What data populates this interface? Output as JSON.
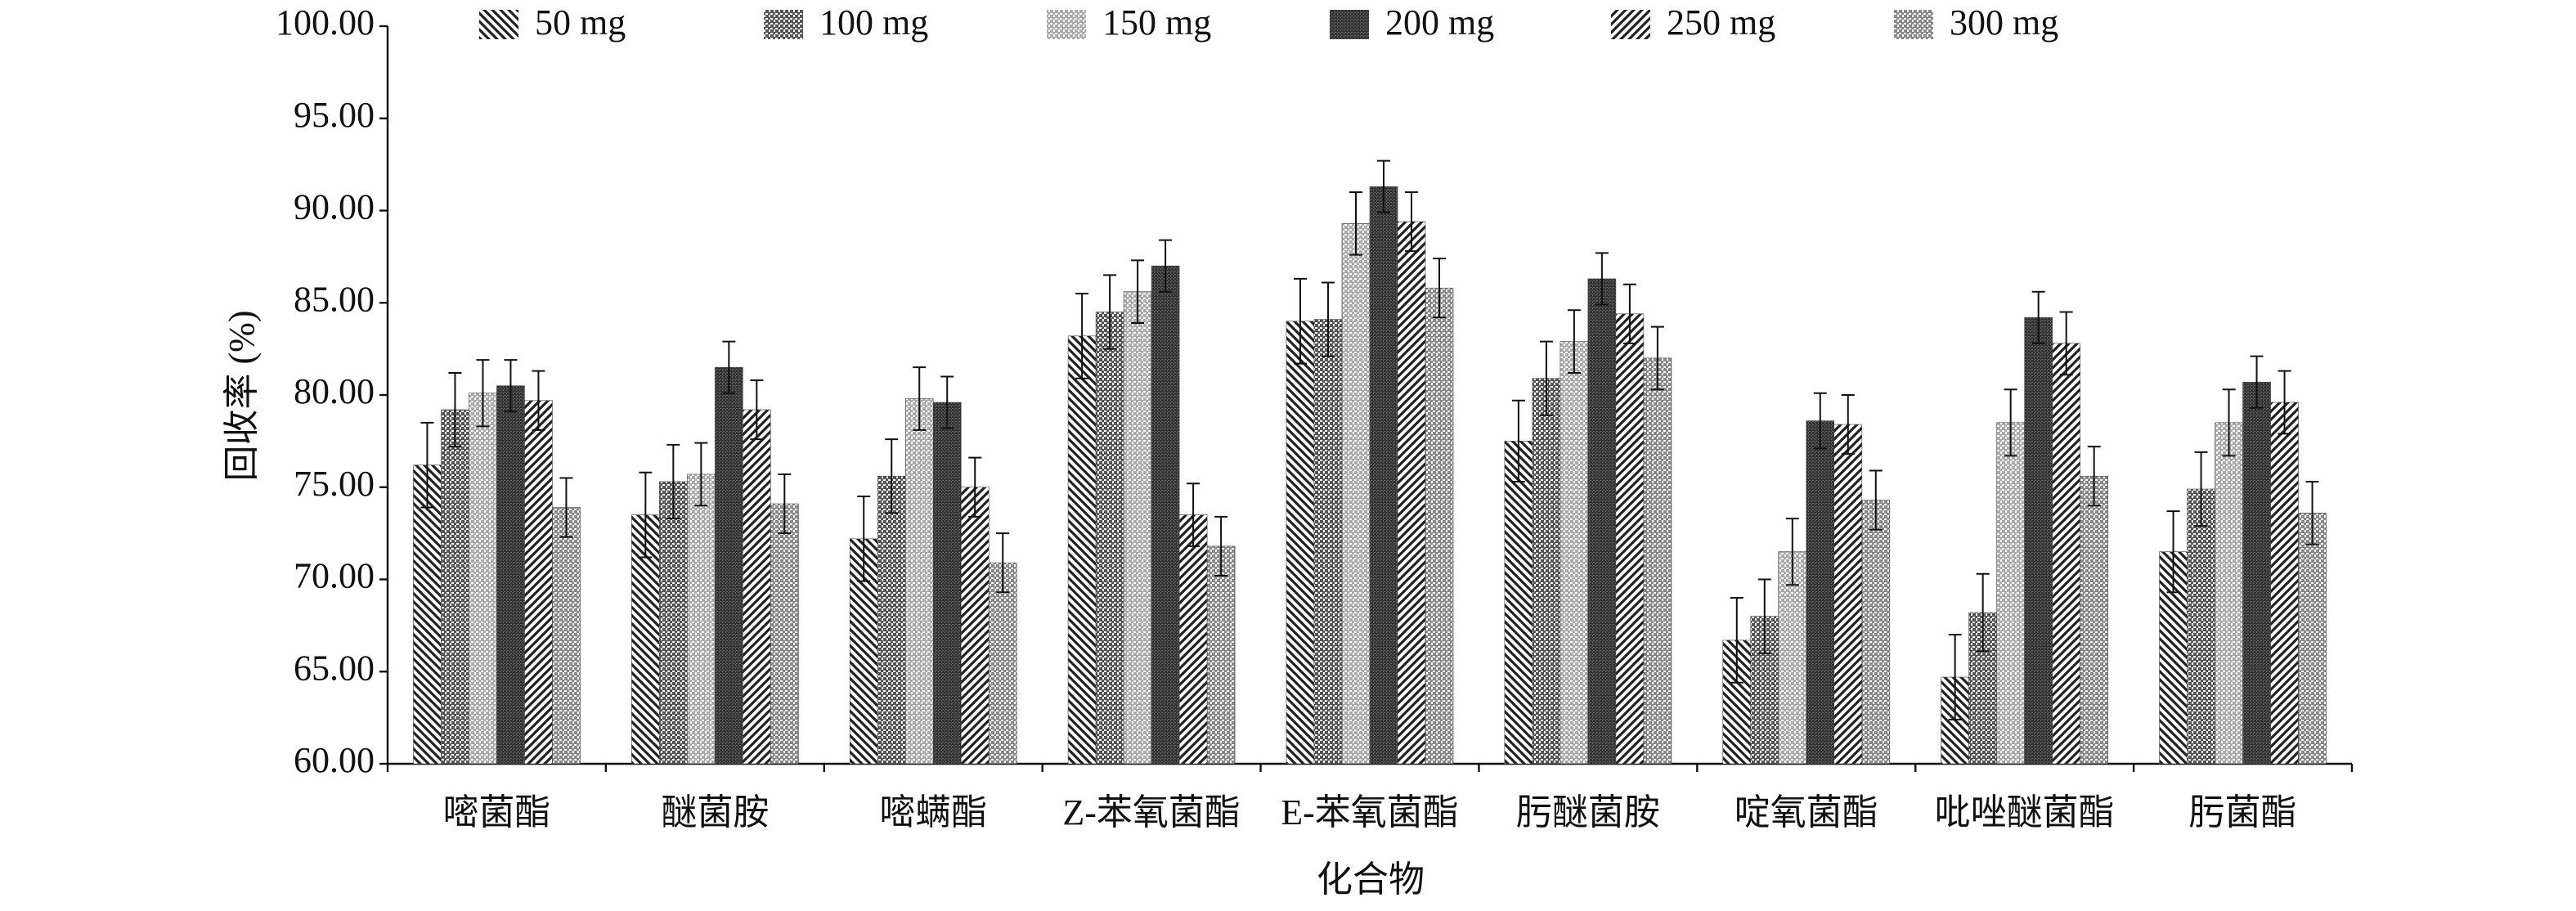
{
  "chart_data": {
    "type": "bar",
    "y_label": "回收率 (%)",
    "x_label": "化合物",
    "categories": [
      "嘧菌酯",
      "醚菌胺",
      "嘧螨酯",
      "Z-苯氧菌酯",
      "E-苯氧菌酯",
      "肟醚菌胺",
      "啶氧菌酯",
      "吡唑醚菌酯",
      "肟菌酯"
    ],
    "ylim": [
      60,
      100
    ],
    "yticks": [
      {
        "value": 60,
        "label": "60.00"
      },
      {
        "value": 65,
        "label": "65.00"
      },
      {
        "value": 70,
        "label": "70.00"
      },
      {
        "value": 75,
        "label": "75.00"
      },
      {
        "value": 80,
        "label": "80.00"
      },
      {
        "value": 85,
        "label": "85.00"
      },
      {
        "value": 90,
        "label": "90.00"
      },
      {
        "value": 95,
        "label": "95.00"
      },
      {
        "value": 100,
        "label": "100.00"
      }
    ],
    "legend_position": "top",
    "series": [
      {
        "name": "50 mg",
        "color": "#222222",
        "pattern": "diag-down",
        "values": [
          76.2,
          73.5,
          72.2,
          83.2,
          84.0,
          77.5,
          66.7,
          64.7,
          71.5
        ],
        "errors": [
          2.3,
          2.3,
          2.3,
          2.3,
          2.3,
          2.2,
          2.3,
          2.3,
          2.2
        ]
      },
      {
        "name": "100 mg",
        "color": "#555555",
        "pattern": "dots-dark",
        "values": [
          79.2,
          75.3,
          75.6,
          84.5,
          84.1,
          80.9,
          68.0,
          68.2,
          74.9
        ],
        "errors": [
          2.0,
          2.0,
          2.0,
          2.0,
          2.0,
          2.0,
          2.0,
          2.1,
          2.0
        ]
      },
      {
        "name": "150 mg",
        "color": "#aaaaaa",
        "pattern": "dots-light",
        "values": [
          80.1,
          75.7,
          79.8,
          85.6,
          89.3,
          82.9,
          71.5,
          78.5,
          78.5
        ],
        "errors": [
          1.8,
          1.7,
          1.7,
          1.7,
          1.7,
          1.7,
          1.8,
          1.8,
          1.8
        ]
      },
      {
        "name": "200 mg",
        "color": "#333333",
        "pattern": "dense-dark",
        "values": [
          80.5,
          81.5,
          79.6,
          87.0,
          91.3,
          86.3,
          78.6,
          84.2,
          80.7
        ],
        "errors": [
          1.4,
          1.4,
          1.4,
          1.4,
          1.4,
          1.4,
          1.5,
          1.4,
          1.4
        ]
      },
      {
        "name": "250 mg",
        "color": "#222222",
        "pattern": "diag-up",
        "values": [
          79.7,
          79.2,
          75.0,
          73.5,
          89.4,
          84.4,
          78.4,
          82.8,
          79.6
        ],
        "errors": [
          1.6,
          1.6,
          1.6,
          1.7,
          1.6,
          1.6,
          1.6,
          1.7,
          1.7
        ]
      },
      {
        "name": "300 mg",
        "color": "#888888",
        "pattern": "dots-mid",
        "values": [
          73.9,
          74.1,
          70.9,
          71.8,
          85.8,
          82.0,
          74.3,
          75.6,
          73.6
        ],
        "errors": [
          1.6,
          1.6,
          1.6,
          1.6,
          1.6,
          1.7,
          1.6,
          1.6,
          1.7
        ]
      }
    ]
  }
}
